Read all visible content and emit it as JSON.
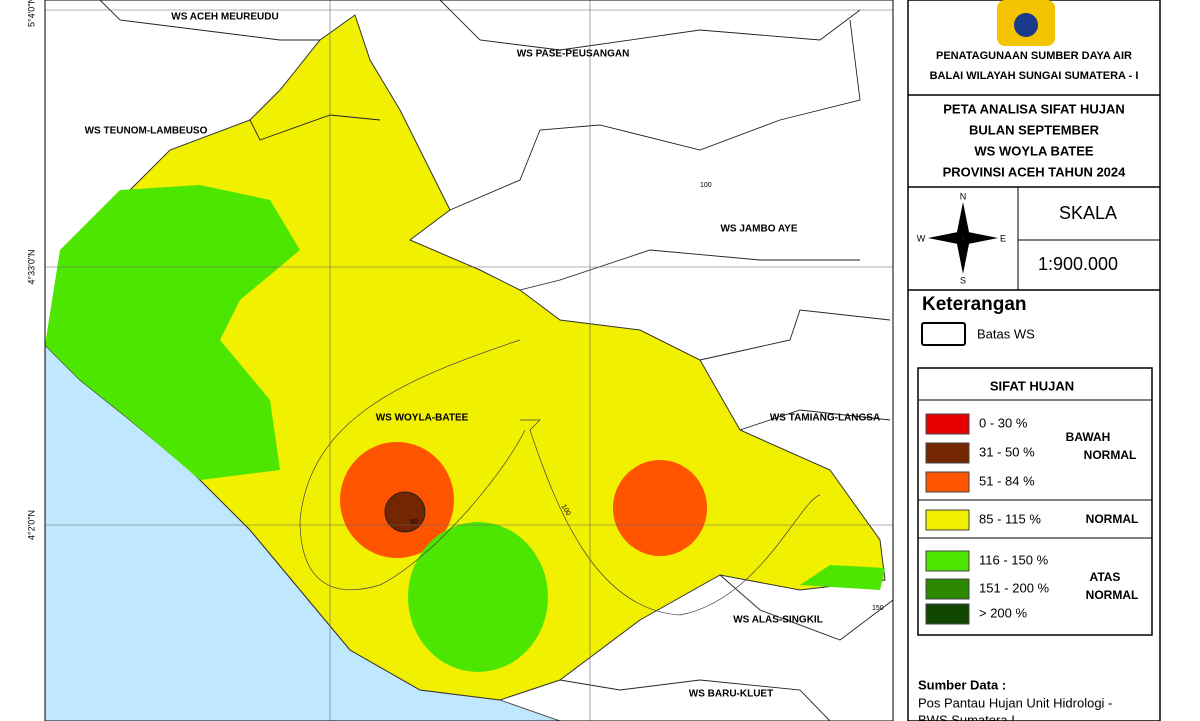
{
  "map": {
    "lat_labels": [
      "5°4'0\"N",
      "4°33'0\"N",
      "4°2'0\"N"
    ],
    "regions": [
      "WS ACEH MEUREUDU",
      "WS PASE-PEUSANGAN",
      "WS TEUNOM-LAMBEUSO",
      "WS JAMBO AYE",
      "WS WOYLA-BATEE",
      "WS TAMIANG-LANGSA",
      "WS ALAS-SINGKIL",
      "WS BARU-KLUET"
    ],
    "contour_labels": [
      "100",
      "100",
      "150",
      "50"
    ]
  },
  "panel": {
    "agency": [
      "PENATAGUNAAN SUMBER DAYA AIR",
      "BALAI WILAYAH SUNGAI SUMATERA - I"
    ],
    "title": [
      "PETA ANALISA SIFAT HUJAN",
      "BULAN SEPTEMBER",
      "WS WOYLA BATEE",
      "PROVINSI ACEH TAHUN 2024"
    ],
    "compass": {
      "n": "N",
      "s": "S",
      "e": "E",
      "w": "W"
    },
    "scale_label": "SKALA",
    "scale": "1:900.000",
    "legend_title": "Keterangan",
    "boundary_label": "Batas WS",
    "legend_heading": "SIFAT HUJAN",
    "items": [
      {
        "label": "0  -  30 %",
        "color": "#e60000"
      },
      {
        "label": "31  -  50 %",
        "color": "#732600"
      },
      {
        "label": "51  -  84 %",
        "color": "#ff5500"
      },
      {
        "label": "85  -  115 %",
        "color": "#f0f000"
      },
      {
        "label": "116  -  150 %",
        "color": "#4ce600"
      },
      {
        "label": "151  -  200 %",
        "color": "#2d8a00"
      },
      {
        "label": ">  200 %",
        "color": "#0f4700"
      }
    ],
    "groups": [
      [
        "BAWAH",
        "NORMAL"
      ],
      [
        "NORMAL"
      ],
      [
        "ATAS",
        "NORMAL"
      ]
    ],
    "source_title": "Sumber Data :",
    "source": [
      "Pos Pantau Hujan Unit Hidrologi -",
      "BWS Sumatera I"
    ]
  }
}
